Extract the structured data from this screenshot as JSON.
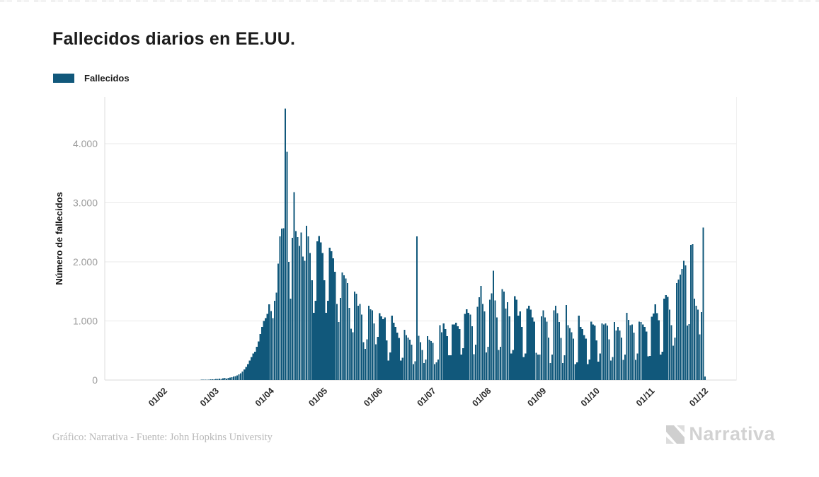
{
  "header": {
    "title": "Fallecidos diarios en EE.UU."
  },
  "legend": {
    "label": "Fallecidos",
    "swatch_color": "#11587B"
  },
  "footer": {
    "credit": "Gráfico: Narrativa - Fuente: John Hopkins University",
    "logo_text": "Narrativa"
  },
  "chart_data": {
    "type": "bar",
    "title": "Fallecidos diarios en EE.UU.",
    "series_name": "Fallecidos",
    "xlabel": "",
    "ylabel": "Número de fallecidos",
    "bar_color": "#11587B",
    "grid": true,
    "legend_position": "top-left",
    "start_date": "2020-01-01",
    "ylim": [
      0,
      4780
    ],
    "y_ticks": [
      0,
      1000,
      2000,
      3000,
      4000
    ],
    "y_tick_labels": [
      "0",
      "1.000",
      "2.000",
      "3.000",
      "4.000"
    ],
    "x_tick_labels": [
      "01/02",
      "01/03",
      "01/04",
      "01/05",
      "01/06",
      "01/07",
      "01/08",
      "01/09",
      "01/10",
      "01/11",
      "01/12"
    ],
    "x_tick_day_index": [
      31,
      60,
      91,
      121,
      152,
      182,
      213,
      244,
      274,
      305,
      335
    ],
    "x_domain_days": 355,
    "values": [
      0,
      0,
      0,
      0,
      0,
      0,
      0,
      0,
      0,
      0,
      0,
      0,
      0,
      0,
      0,
      0,
      0,
      0,
      0,
      0,
      0,
      0,
      0,
      0,
      0,
      0,
      0,
      0,
      0,
      0,
      0,
      0,
      0,
      0,
      0,
      0,
      0,
      0,
      0,
      0,
      0,
      0,
      0,
      0,
      0,
      1,
      1,
      1,
      1,
      1,
      2,
      2,
      2,
      2,
      6,
      8,
      5,
      7,
      9,
      10,
      12,
      14,
      17,
      20,
      24,
      20,
      28,
      33,
      26,
      38,
      44,
      50,
      58,
      68,
      80,
      95,
      115,
      145,
      180,
      220,
      270,
      330,
      390,
      450,
      480,
      560,
      650,
      780,
      900,
      1000,
      1049,
      1120,
      1280,
      1170,
      1050,
      1340,
      1480,
      1970,
      2430,
      2560,
      2570,
      4591,
      3860,
      2000,
      1380,
      2408,
      3180,
      2520,
      2420,
      2270,
      2500,
      2090,
      2020,
      2610,
      2430,
      2150,
      1690,
      1140,
      1340,
      2350,
      2440,
      2330,
      2150,
      1690,
      1140,
      1340,
      2240,
      2180,
      2060,
      1830,
      1290,
      980,
      1390,
      1820,
      1770,
      1720,
      1640,
      1220,
      870,
      810,
      1500,
      1460,
      1260,
      1290,
      1110,
      640,
      530,
      690,
      1260,
      1200,
      1180,
      960,
      605,
      730,
      1130,
      1080,
      1030,
      1060,
      670,
      330,
      470,
      1090,
      970,
      900,
      800,
      710,
      330,
      380,
      850,
      760,
      720,
      680,
      600,
      270,
      320,
      2430,
      750,
      640,
      510,
      290,
      350,
      740,
      680,
      660,
      630,
      270,
      300,
      350,
      930,
      810,
      960,
      860,
      740,
      420,
      420,
      940,
      940,
      970,
      910,
      860,
      430,
      540,
      1120,
      1200,
      1140,
      1110,
      910,
      440,
      600,
      1240,
      1400,
      1590,
      1290,
      1160,
      470,
      560,
      1360,
      1470,
      1850,
      1350,
      1060,
      510,
      560,
      1540,
      1500,
      1210,
      1320,
      1080,
      450,
      510,
      1420,
      1360,
      1090,
      1160,
      900,
      390,
      450,
      1210,
      1260,
      1190,
      1060,
      990,
      460,
      430,
      430,
      1080,
      1180,
      1060,
      990,
      720,
      290,
      430,
      1180,
      1260,
      1130,
      980,
      710,
      290,
      420,
      1270,
      930,
      880,
      810,
      700,
      270,
      300,
      1090,
      900,
      860,
      760,
      700,
      270,
      350,
      990,
      940,
      920,
      670,
      310,
      450,
      960,
      940,
      960,
      920,
      690,
      330,
      390,
      980,
      840,
      900,
      840,
      720,
      340,
      430,
      1140,
      1020,
      930,
      940,
      800,
      340,
      450,
      990,
      980,
      940,
      900,
      820,
      400,
      410,
      1070,
      1125,
      1280,
      1130,
      1010,
      430,
      480,
      1380,
      1440,
      1410,
      1190,
      930,
      580,
      720,
      1640,
      1700,
      1785,
      1880,
      2020,
      1940,
      920,
      945,
      2290,
      2300,
      1380,
      1260,
      1190,
      770,
      1150,
      2580,
      60
    ]
  }
}
